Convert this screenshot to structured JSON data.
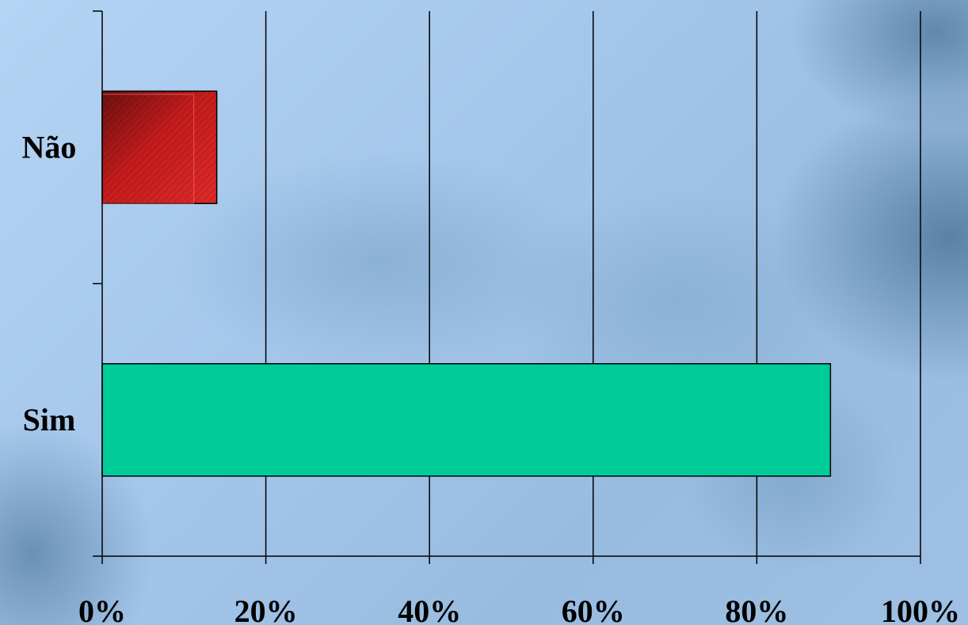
{
  "chart_data": {
    "type": "bar",
    "orientation": "horizontal",
    "categories": [
      "Não",
      "Sim"
    ],
    "values": [
      14,
      89
    ],
    "xlim": [
      0,
      100
    ],
    "xticks": [
      "0%",
      "20%",
      "40%",
      "60%",
      "80%",
      "100%"
    ],
    "title": "",
    "xlabel": "",
    "ylabel": "",
    "grid": true,
    "colors": [
      "#c81e1e",
      "#00cc99"
    ]
  }
}
